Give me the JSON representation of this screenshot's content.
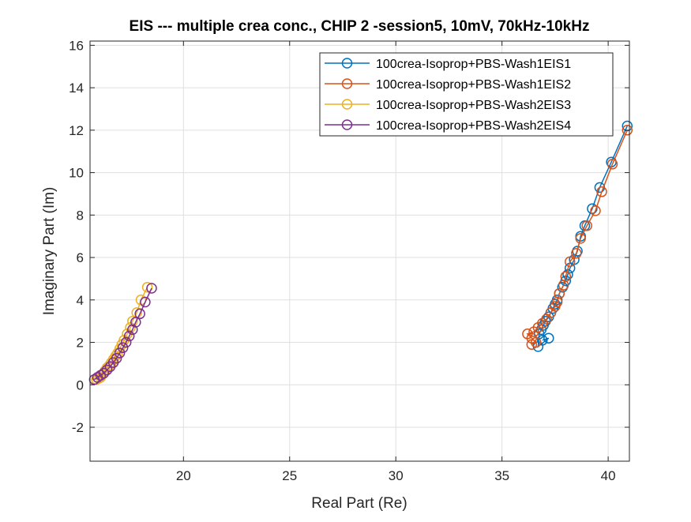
{
  "chart_data": {
    "type": "line",
    "title": "EIS --- multiple crea conc., CHIP 2 -session5, 10mV, 70kHz-10kHz",
    "xlabel": "Real Part (Re)",
    "ylabel": "Imaginary Part (Im)",
    "xlim": [
      15.6,
      41.0
    ],
    "ylim": [
      -3.6,
      16.2
    ],
    "xticks": [
      20,
      25,
      30,
      35,
      40
    ],
    "xtick_labels": [
      "20",
      "25",
      "30",
      "35",
      "40"
    ],
    "yticks": [
      -2,
      0,
      2,
      4,
      6,
      8,
      10,
      12,
      14,
      16
    ],
    "ytick_labels": [
      "-2",
      "0",
      "2",
      "4",
      "6",
      "8",
      "10",
      "12",
      "14",
      "16"
    ],
    "grid": true,
    "legend_position": "top-right",
    "marker": "open-circle",
    "series": [
      {
        "name": "100crea-Isoprop+PBS-Wash1EIS1",
        "color": "#0072BD",
        "x": [
          40.9,
          40.15,
          39.6,
          39.25,
          38.9,
          38.7,
          38.55,
          38.4,
          38.2,
          38.1,
          38.0,
          37.85,
          37.7,
          37.6,
          37.5,
          37.4,
          37.3,
          37.2,
          37.05,
          36.95,
          36.85,
          36.75,
          36.7,
          37.2,
          36.9
        ],
        "y": [
          12.2,
          10.5,
          9.3,
          8.3,
          7.5,
          7.0,
          6.3,
          5.9,
          5.5,
          5.2,
          4.9,
          4.6,
          4.3,
          4.0,
          3.8,
          3.6,
          3.4,
          3.2,
          3.0,
          2.8,
          2.6,
          2.4,
          1.8,
          2.2,
          2.1
        ]
      },
      {
        "name": "100crea-Isoprop+PBS-Wash1EIS2",
        "color": "#D95319",
        "x": [
          40.9,
          40.2,
          39.7,
          39.4,
          39.0,
          38.7,
          38.5,
          38.2,
          38.0,
          37.9,
          37.7,
          37.6,
          37.5,
          37.3,
          37.1,
          36.9,
          36.7,
          36.5,
          36.2,
          36.4,
          36.6,
          36.4
        ],
        "y": [
          12.0,
          10.4,
          9.1,
          8.2,
          7.5,
          6.9,
          6.2,
          5.8,
          5.1,
          4.7,
          4.3,
          3.9,
          3.7,
          3.4,
          3.1,
          2.9,
          2.7,
          2.5,
          2.4,
          2.2,
          2.0,
          1.9
        ]
      },
      {
        "name": "100crea-Isoprop+PBS-Wash2EIS3",
        "color": "#EDB120",
        "x": [
          18.3,
          18.0,
          17.8,
          17.6,
          17.5,
          17.35,
          17.2,
          17.1,
          17.0,
          16.9,
          16.8,
          16.7,
          16.6,
          16.5,
          16.4,
          16.3,
          16.2,
          16.1,
          16.0,
          15.9
        ],
        "y": [
          4.6,
          4.0,
          3.4,
          3.0,
          2.7,
          2.4,
          2.1,
          1.9,
          1.7,
          1.5,
          1.35,
          1.2,
          1.05,
          0.9,
          0.8,
          0.65,
          0.5,
          0.35,
          0.3,
          0.25
        ]
      },
      {
        "name": "100crea-Isoprop+PBS-Wash2EIS4",
        "color": "#7E2F8E",
        "x": [
          18.5,
          18.2,
          17.95,
          17.75,
          17.6,
          17.45,
          17.3,
          17.15,
          17.0,
          16.85,
          16.7,
          16.55,
          16.4,
          16.25,
          16.1,
          15.95,
          15.8
        ],
        "y": [
          4.55,
          3.9,
          3.35,
          2.95,
          2.6,
          2.3,
          2.0,
          1.75,
          1.5,
          1.25,
          1.05,
          0.85,
          0.7,
          0.55,
          0.45,
          0.35,
          0.25
        ]
      }
    ]
  }
}
